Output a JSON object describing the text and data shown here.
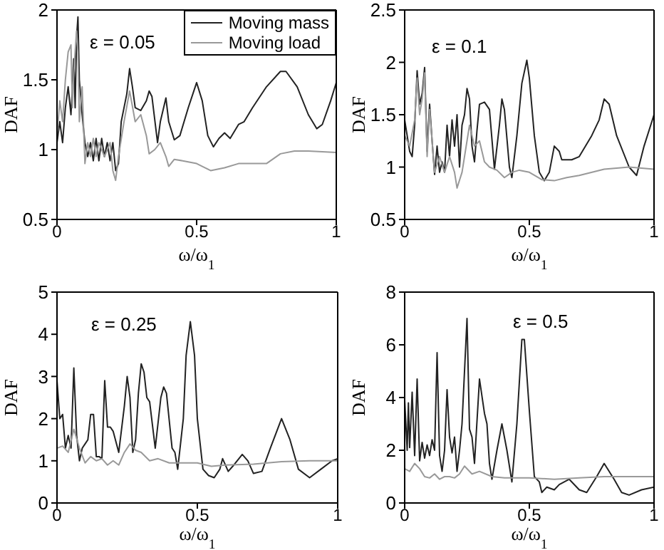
{
  "chart_data": [
    {
      "type": "line",
      "xlabel": "ω/ω$_{1}$",
      "ylabel": "DAF",
      "xlim": [
        0,
        1
      ],
      "xticks": [
        0,
        0.5,
        1
      ],
      "ylim": [
        0.5,
        2
      ],
      "yticks": [
        0.5,
        1,
        1.5,
        2
      ],
      "legend": "top right",
      "marker": "none",
      "annotations": [
        "ε = 0.05"
      ],
      "series": [
        {
          "name": "Moving mass",
          "color": "#222222",
          "x": [
            0,
            0.01,
            0.02,
            0.03,
            0.04,
            0.05,
            0.06,
            0.065,
            0.07,
            0.075,
            0.08,
            0.09,
            0.1,
            0.11,
            0.12,
            0.13,
            0.14,
            0.15,
            0.16,
            0.17,
            0.18,
            0.19,
            0.2,
            0.21,
            0.22,
            0.23,
            0.25,
            0.26,
            0.27,
            0.28,
            0.3,
            0.32,
            0.33,
            0.34,
            0.36,
            0.37,
            0.39,
            0.4,
            0.42,
            0.44,
            0.47,
            0.5,
            0.52,
            0.54,
            0.56,
            0.58,
            0.6,
            0.62,
            0.65,
            0.67,
            0.7,
            0.75,
            0.8,
            0.82,
            0.86,
            0.9,
            0.93,
            0.95,
            0.98,
            1
          ],
          "values": [
            1.05,
            1.2,
            1.05,
            1.3,
            1.45,
            1.25,
            1.65,
            1.3,
            1.8,
            1.95,
            1.5,
            1.25,
            1.05,
            0.95,
            1.05,
            0.92,
            1.08,
            0.92,
            1.08,
            0.95,
            1.05,
            0.92,
            1.05,
            0.85,
            0.9,
            1.2,
            1.4,
            1.58,
            1.45,
            1.3,
            1.28,
            1.35,
            1.42,
            1.38,
            1.05,
            1.2,
            1.37,
            1.2,
            1.07,
            1.1,
            1.3,
            1.48,
            1.35,
            1.1,
            1.02,
            1.08,
            1.12,
            1.08,
            1.18,
            1.2,
            1.3,
            1.45,
            1.56,
            1.56,
            1.45,
            1.25,
            1.15,
            1.18,
            1.35,
            1.48
          ]
        },
        {
          "name": "Moving load",
          "color": "#999999",
          "x": [
            0,
            0.01,
            0.02,
            0.03,
            0.04,
            0.05,
            0.055,
            0.06,
            0.07,
            0.075,
            0.08,
            0.09,
            0.1,
            0.11,
            0.12,
            0.13,
            0.14,
            0.15,
            0.17,
            0.19,
            0.2,
            0.21,
            0.22,
            0.24,
            0.26,
            0.28,
            0.3,
            0.32,
            0.33,
            0.35,
            0.37,
            0.39,
            0.4,
            0.42,
            0.45,
            0.5,
            0.55,
            0.6,
            0.65,
            0.7,
            0.75,
            0.8,
            0.85,
            0.9,
            1
          ],
          "values": [
            1.1,
            1.35,
            1.2,
            1.5,
            1.7,
            1.75,
            1.3,
            1.55,
            1.85,
            1.7,
            1.2,
            1.45,
            0.9,
            1.05,
            0.95,
            1.08,
            0.95,
            1.05,
            0.95,
            1.05,
            0.85,
            0.78,
            0.95,
            1.2,
            1.42,
            1.2,
            1.25,
            1.1,
            0.97,
            1.0,
            1.05,
            0.95,
            0.88,
            0.93,
            0.92,
            0.9,
            0.85,
            0.87,
            0.9,
            0.9,
            0.9,
            0.97,
            0.99,
            0.99,
            0.98
          ]
        }
      ]
    },
    {
      "type": "line",
      "xlabel": "ω/ω$_{1}$",
      "ylabel": "DAF",
      "xlim": [
        0,
        1
      ],
      "xticks": [
        0,
        0.5,
        1
      ],
      "ylim": [
        0.5,
        2.5
      ],
      "yticks": [
        0.5,
        1,
        1.5,
        2,
        2.5
      ],
      "marker": "none",
      "annotations": [
        "ε = 0.1"
      ],
      "series": [
        {
          "color": "#222222",
          "x": [
            0,
            0.01,
            0.02,
            0.03,
            0.04,
            0.05,
            0.06,
            0.07,
            0.08,
            0.09,
            0.1,
            0.11,
            0.12,
            0.13,
            0.14,
            0.15,
            0.16,
            0.17,
            0.18,
            0.19,
            0.2,
            0.21,
            0.22,
            0.23,
            0.24,
            0.25,
            0.26,
            0.27,
            0.28,
            0.29,
            0.3,
            0.32,
            0.34,
            0.36,
            0.38,
            0.39,
            0.4,
            0.42,
            0.43,
            0.45,
            0.47,
            0.49,
            0.5,
            0.52,
            0.54,
            0.56,
            0.58,
            0.6,
            0.62,
            0.63,
            0.67,
            0.7,
            0.75,
            0.78,
            0.8,
            0.82,
            0.85,
            0.9,
            0.93,
            0.96,
            1
          ],
          "values": [
            1.45,
            1.3,
            1.15,
            1.1,
            1.4,
            1.92,
            1.6,
            1.7,
            1.95,
            1.15,
            1.6,
            1.25,
            0.93,
            1.2,
            0.95,
            1.05,
            0.95,
            1.4,
            1.1,
            1.45,
            1.2,
            1.5,
            1.0,
            1.4,
            1.5,
            1.75,
            1.65,
            1.2,
            1.05,
            1.35,
            1.6,
            1.62,
            1.55,
            0.98,
            1.4,
            1.65,
            1.55,
            1.0,
            0.9,
            1.3,
            1.8,
            2.02,
            1.85,
            1.3,
            0.95,
            0.87,
            0.95,
            1.2,
            1.15,
            1.07,
            1.07,
            1.1,
            1.3,
            1.45,
            1.65,
            1.6,
            1.3,
            1.0,
            0.92,
            1.2,
            1.5
          ]
        },
        {
          "color": "#999999",
          "x": [
            0,
            0.02,
            0.04,
            0.05,
            0.06,
            0.07,
            0.08,
            0.09,
            0.1,
            0.12,
            0.14,
            0.16,
            0.18,
            0.2,
            0.21,
            0.23,
            0.25,
            0.26,
            0.28,
            0.3,
            0.32,
            0.34,
            0.37,
            0.4,
            0.43,
            0.46,
            0.5,
            0.55,
            0.6,
            0.65,
            0.7,
            0.8,
            0.9,
            1
          ],
          "values": [
            1.3,
            1.2,
            1.45,
            1.85,
            1.5,
            1.65,
            1.9,
            1.1,
            1.55,
            0.95,
            1.1,
            0.95,
            1.1,
            0.95,
            0.8,
            0.95,
            1.25,
            1.4,
            1.2,
            1.25,
            1.05,
            1.0,
            0.97,
            0.9,
            0.95,
            0.97,
            0.95,
            0.88,
            0.87,
            0.9,
            0.92,
            0.98,
            1.0,
            0.98
          ]
        }
      ]
    },
    {
      "type": "line",
      "xlabel": "ω/ω$_{1}$",
      "ylabel": "DAF",
      "xlim": [
        0,
        1
      ],
      "xticks": [
        0,
        0.5,
        1
      ],
      "ylim": [
        0,
        5
      ],
      "yticks": [
        0,
        1,
        2,
        3,
        4,
        5
      ],
      "marker": "none",
      "annotations": [
        "ε = 0.25"
      ],
      "series": [
        {
          "color": "#222222",
          "x": [
            0,
            0.01,
            0.02,
            0.03,
            0.04,
            0.05,
            0.06,
            0.07,
            0.08,
            0.09,
            0.1,
            0.11,
            0.12,
            0.13,
            0.14,
            0.15,
            0.16,
            0.17,
            0.18,
            0.19,
            0.2,
            0.22,
            0.24,
            0.25,
            0.26,
            0.27,
            0.28,
            0.29,
            0.3,
            0.31,
            0.32,
            0.33,
            0.35,
            0.37,
            0.38,
            0.39,
            0.41,
            0.42,
            0.43,
            0.45,
            0.46,
            0.475,
            0.49,
            0.5,
            0.52,
            0.54,
            0.56,
            0.58,
            0.59,
            0.61,
            0.63,
            0.66,
            0.68,
            0.7,
            0.73,
            0.76,
            0.8,
            0.83,
            0.86,
            0.9,
            0.94,
            0.98,
            1
          ],
          "values": [
            2.9,
            2.0,
            2.1,
            1.3,
            1.6,
            1.3,
            3.2,
            1.6,
            1.0,
            1.3,
            1.4,
            1.5,
            2.1,
            2.1,
            1.1,
            1.1,
            1.05,
            2.9,
            1.8,
            1.8,
            1.7,
            1.2,
            2.3,
            3.0,
            2.5,
            1.2,
            1.5,
            2.6,
            3.3,
            3.1,
            2.5,
            2.4,
            1.3,
            2.5,
            2.75,
            2.6,
            1.3,
            1.2,
            0.8,
            2.0,
            3.5,
            4.3,
            3.5,
            2.0,
            0.8,
            0.65,
            0.6,
            0.8,
            1.05,
            0.75,
            0.9,
            1.15,
            1.0,
            0.7,
            0.75,
            1.3,
            2.0,
            1.5,
            0.8,
            0.6,
            0.8,
            1.0,
            1.05
          ]
        },
        {
          "color": "#999999",
          "x": [
            0,
            0.02,
            0.04,
            0.06,
            0.08,
            0.1,
            0.12,
            0.14,
            0.16,
            0.18,
            0.2,
            0.22,
            0.24,
            0.26,
            0.28,
            0.3,
            0.33,
            0.36,
            0.4,
            0.45,
            0.5,
            0.55,
            0.6,
            0.7,
            0.8,
            0.9,
            1
          ],
          "values": [
            1.3,
            1.35,
            1.2,
            1.75,
            1.3,
            0.95,
            1.1,
            1.0,
            1.05,
            0.9,
            1.0,
            0.9,
            1.2,
            1.4,
            1.25,
            1.2,
            1.0,
            1.05,
            0.95,
            0.95,
            0.95,
            0.87,
            0.9,
            0.92,
            0.98,
            1.0,
            1.0
          ]
        }
      ]
    },
    {
      "type": "line",
      "xlabel": "ω/ω$_{1}$",
      "ylabel": "DAF",
      "xlim": [
        0,
        1
      ],
      "xticks": [
        0,
        0.5,
        1
      ],
      "ylim": [
        0,
        8
      ],
      "yticks": [
        0,
        2,
        4,
        6,
        8
      ],
      "marker": "none",
      "annotations": [
        "ε = 0.5"
      ],
      "series": [
        {
          "color": "#222222",
          "x": [
            0,
            0.01,
            0.015,
            0.02,
            0.03,
            0.04,
            0.05,
            0.06,
            0.07,
            0.08,
            0.09,
            0.1,
            0.11,
            0.12,
            0.13,
            0.14,
            0.15,
            0.16,
            0.17,
            0.18,
            0.19,
            0.2,
            0.21,
            0.22,
            0.23,
            0.25,
            0.26,
            0.27,
            0.28,
            0.3,
            0.32,
            0.33,
            0.34,
            0.35,
            0.37,
            0.39,
            0.41,
            0.43,
            0.45,
            0.47,
            0.48,
            0.5,
            0.52,
            0.54,
            0.55,
            0.57,
            0.6,
            0.62,
            0.66,
            0.7,
            0.73,
            0.77,
            0.8,
            0.84,
            0.87,
            0.9,
            0.95,
            1
          ],
          "values": [
            3.9,
            2.0,
            3.8,
            2.1,
            4.2,
            1.8,
            4.7,
            1.6,
            2.3,
            1.7,
            2.2,
            1.8,
            2.4,
            2.0,
            5.7,
            1.8,
            1.2,
            2.0,
            4.3,
            2.5,
            1.9,
            2.5,
            1.2,
            2.0,
            3.0,
            7.0,
            2.8,
            2.5,
            1.5,
            4.7,
            3.4,
            3.0,
            1.5,
            0.9,
            2.0,
            3.0,
            2.0,
            0.8,
            3.0,
            6.2,
            6.2,
            3.5,
            1.0,
            0.8,
            0.4,
            0.6,
            0.5,
            0.7,
            0.9,
            0.5,
            0.4,
            1.0,
            1.5,
            0.9,
            0.4,
            0.3,
            0.5,
            0.6
          ]
        },
        {
          "color": "#999999",
          "x": [
            0,
            0.02,
            0.04,
            0.06,
            0.08,
            0.1,
            0.12,
            0.14,
            0.16,
            0.18,
            0.2,
            0.22,
            0.24,
            0.27,
            0.3,
            0.35,
            0.4,
            0.5,
            0.6,
            0.7,
            0.8,
            1
          ],
          "values": [
            1.3,
            1.2,
            1.5,
            1.3,
            1.0,
            0.95,
            1.1,
            0.9,
            1.0,
            1.0,
            0.95,
            1.1,
            1.4,
            1.1,
            1.2,
            1.0,
            0.95,
            0.95,
            0.9,
            0.95,
            1.0,
            1.0
          ]
        }
      ]
    }
  ]
}
